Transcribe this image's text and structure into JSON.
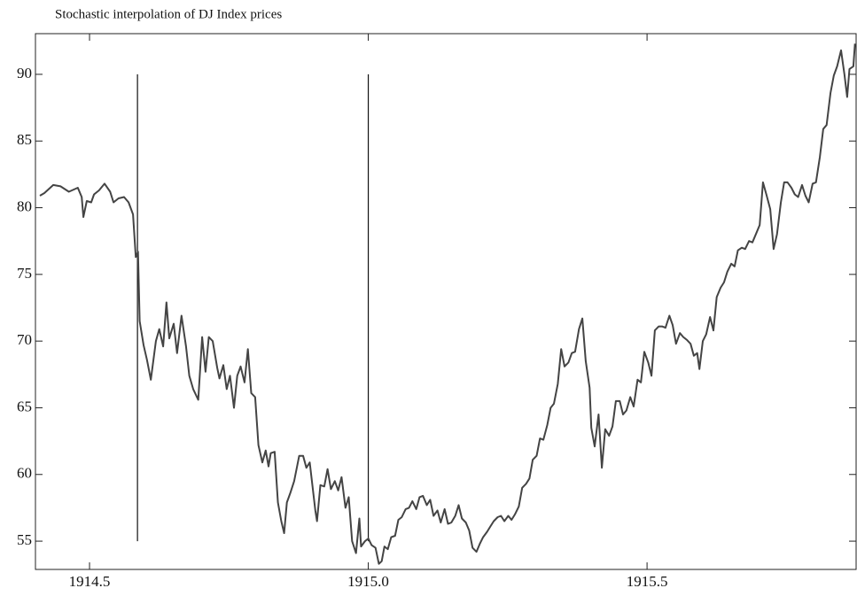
{
  "chart_data": {
    "type": "line",
    "title": "Stochastic interpolation of DJ Index prices",
    "x": [
      1914.411,
      1914.419,
      1914.435,
      1914.448,
      1914.463,
      1914.479,
      1914.486,
      1914.489,
      1914.495,
      1914.503,
      1914.508,
      1914.517,
      1914.527,
      1914.537,
      1914.543,
      1914.552,
      1914.562,
      1914.57,
      1914.578,
      1914.583,
      1914.587,
      1914.59,
      1914.597,
      1914.603,
      1914.61,
      1914.619,
      1914.625,
      1914.632,
      1914.638,
      1914.643,
      1914.651,
      1914.657,
      1914.665,
      1914.673,
      1914.679,
      1914.686,
      1914.695,
      1914.702,
      1914.708,
      1914.714,
      1914.721,
      1914.729,
      1914.733,
      1914.74,
      1914.746,
      1914.752,
      1914.759,
      1914.765,
      1914.771,
      1914.778,
      1914.784,
      1914.79,
      1914.797,
      1914.803,
      1914.81,
      1914.816,
      1914.821,
      1914.825,
      1914.832,
      1914.838,
      1914.844,
      1914.849,
      1914.854,
      1914.86,
      1914.867,
      1914.876,
      1914.883,
      1914.889,
      1914.895,
      1914.905,
      1914.908,
      1914.914,
      1914.921,
      1914.927,
      1914.933,
      1914.94,
      1914.946,
      1914.952,
      1914.959,
      1914.965,
      1914.971,
      1914.978,
      1914.984,
      1914.987,
      1914.994,
      1915.0,
      1915.006,
      1915.013,
      1915.019,
      1915.024,
      1915.029,
      1915.035,
      1915.041,
      1915.048,
      1915.054,
      1915.06,
      1915.067,
      1915.073,
      1915.079,
      1915.086,
      1915.092,
      1915.098,
      1915.105,
      1915.111,
      1915.117,
      1915.124,
      1915.13,
      1915.137,
      1915.143,
      1915.149,
      1915.156,
      1915.162,
      1915.168,
      1915.175,
      1915.181,
      1915.187,
      1915.194,
      1915.2,
      1915.206,
      1915.213,
      1915.219,
      1915.225,
      1915.232,
      1915.238,
      1915.244,
      1915.251,
      1915.257,
      1915.263,
      1915.27,
      1915.276,
      1915.283,
      1915.289,
      1915.295,
      1915.302,
      1915.308,
      1915.314,
      1915.321,
      1915.327,
      1915.333,
      1915.34,
      1915.346,
      1915.352,
      1915.359,
      1915.365,
      1915.371,
      1915.378,
      1915.384,
      1915.39,
      1915.397,
      1915.4,
      1915.406,
      1915.413,
      1915.419,
      1915.425,
      1915.432,
      1915.438,
      1915.444,
      1915.451,
      1915.457,
      1915.463,
      1915.47,
      1915.476,
      1915.483,
      1915.489,
      1915.495,
      1915.502,
      1915.508,
      1915.514,
      1915.521,
      1915.527,
      1915.533,
      1915.54,
      1915.546,
      1915.552,
      1915.559,
      1915.565,
      1915.571,
      1915.578,
      1915.584,
      1915.59,
      1915.594,
      1915.6,
      1915.606,
      1915.613,
      1915.619,
      1915.625,
      1915.632,
      1915.638,
      1915.644,
      1915.651,
      1915.657,
      1915.663,
      1915.67,
      1915.676,
      1915.683,
      1915.689,
      1915.695,
      1915.702,
      1915.708,
      1915.714,
      1915.721,
      1915.727,
      1915.733,
      1915.74,
      1915.746,
      1915.752,
      1915.759,
      1915.765,
      1915.771,
      1915.778,
      1915.784,
      1915.79,
      1915.797,
      1915.803,
      1915.81,
      1915.816,
      1915.822,
      1915.829,
      1915.835,
      1915.841,
      1915.848,
      1915.854,
      1915.859,
      1915.863,
      1915.87,
      1915.873
    ],
    "values": [
      80.9,
      81.1,
      81.7,
      81.6,
      81.2,
      81.5,
      80.8,
      79.3,
      80.5,
      80.4,
      81.0,
      81.3,
      81.8,
      81.2,
      80.4,
      80.7,
      80.8,
      80.4,
      79.5,
      76.3,
      76.7,
      71.5,
      69.7,
      68.6,
      67.1,
      70.0,
      70.9,
      69.6,
      72.9,
      70.2,
      71.3,
      69.1,
      71.9,
      69.6,
      67.4,
      66.4,
      65.6,
      70.3,
      67.7,
      70.3,
      70.0,
      68.0,
      67.2,
      68.2,
      66.4,
      67.4,
      65.0,
      67.4,
      68.1,
      66.9,
      69.4,
      66.1,
      65.8,
      62.2,
      60.9,
      61.8,
      60.6,
      61.6,
      61.7,
      57.9,
      56.5,
      55.6,
      57.9,
      58.6,
      59.5,
      61.4,
      61.4,
      60.5,
      60.9,
      57.3,
      56.5,
      59.2,
      59.1,
      60.4,
      58.9,
      59.5,
      58.8,
      59.8,
      57.5,
      58.3,
      55.0,
      54.1,
      56.7,
      54.6,
      55.0,
      55.2,
      54.7,
      54.5,
      53.3,
      53.5,
      54.6,
      54.4,
      55.3,
      55.4,
      56.6,
      56.8,
      57.4,
      57.5,
      58.0,
      57.4,
      58.3,
      58.4,
      57.7,
      58.1,
      56.9,
      57.3,
      56.4,
      57.4,
      56.3,
      56.4,
      56.9,
      57.7,
      56.7,
      56.4,
      55.8,
      54.5,
      54.2,
      54.8,
      55.3,
      55.7,
      56.1,
      56.5,
      56.8,
      56.9,
      56.5,
      56.9,
      56.6,
      57.0,
      57.6,
      59.0,
      59.3,
      59.7,
      61.1,
      61.4,
      62.7,
      62.6,
      63.7,
      65.0,
      65.3,
      66.8,
      69.4,
      68.1,
      68.4,
      69.1,
      69.2,
      70.9,
      71.7,
      68.5,
      66.5,
      63.5,
      62.1,
      64.5,
      60.5,
      63.4,
      62.9,
      63.6,
      65.5,
      65.5,
      64.5,
      64.8,
      65.8,
      65.1,
      67.1,
      66.9,
      69.2,
      68.4,
      67.4,
      70.8,
      71.1,
      71.1,
      71.0,
      71.9,
      71.2,
      69.8,
      70.6,
      70.3,
      70.1,
      69.8,
      68.9,
      69.1,
      67.9,
      70.0,
      70.5,
      71.8,
      70.8,
      73.3,
      74.0,
      74.4,
      75.2,
      75.8,
      75.6,
      76.8,
      77.0,
      76.9,
      77.5,
      77.4,
      78.0,
      78.7,
      81.9,
      81.0,
      79.9,
      76.9,
      78.0,
      80.4,
      81.9,
      81.9,
      81.5,
      81.0,
      80.8,
      81.7,
      80.9,
      80.4,
      81.8,
      81.9,
      83.8,
      85.9,
      86.2,
      88.6,
      89.9,
      90.6,
      91.8,
      90.0,
      88.3,
      90.4,
      90.6,
      92.3
    ],
    "color": "#444444",
    "vlines": [
      {
        "x": 1914.586,
        "y": [
          55,
          90
        ]
      },
      {
        "x": 1915.0,
        "y": [
          55,
          90
        ]
      }
    ],
    "xlim": [
      1914.403,
      1915.875
    ],
    "ylim": [
      52.88,
      93.05
    ],
    "xticks": [
      1914.5,
      {
        "value": 1915,
        "label": "1915.0"
      },
      1915.5
    ],
    "yticks": [
      55,
      60,
      65,
      70,
      75,
      80,
      85,
      90
    ]
  }
}
